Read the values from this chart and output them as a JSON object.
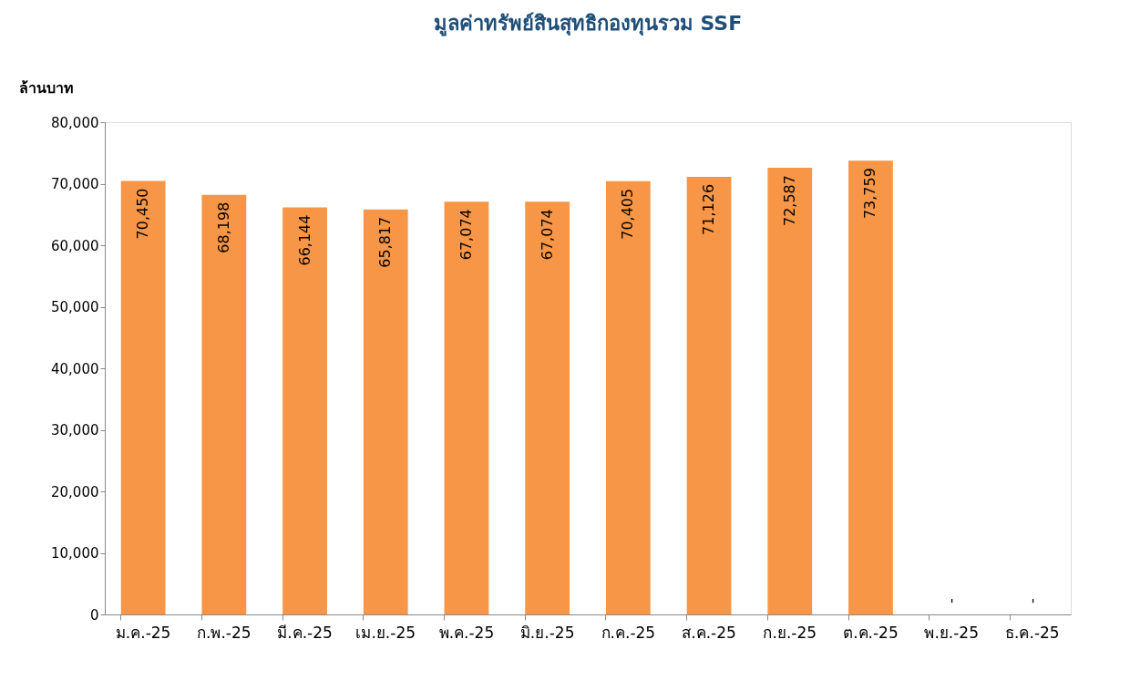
{
  "chart_data": {
    "type": "bar",
    "title": "มูลค่าทรัพย์สินสุทธิกองทุนรวม SSF",
    "ylabel": "ล้านบาท",
    "categories": [
      "ม.ค.-25",
      "ก.พ.-25",
      "มี.ค.-25",
      "เม.ย.-25",
      "พ.ค.-25",
      "มิ.ย.-25",
      "ก.ค.-25",
      "ส.ค.-25",
      "ก.ย.-25",
      "ต.ค.-25",
      "พ.ย.-25",
      "ธ.ค.-25"
    ],
    "values": [
      70450,
      68198,
      66144,
      65817,
      67074,
      67074,
      70405,
      71126,
      72587,
      73759,
      0,
      0
    ],
    "value_labels": [
      "70,450",
      "68,198",
      "66,144",
      "65,817",
      "67,074",
      "67,074",
      "70,405",
      "71,126",
      "72,587",
      "73,759",
      "-",
      "-"
    ],
    "color": "#f79646",
    "ylim": [
      0,
      80000
    ],
    "yticks": [
      0,
      {
        "value": 10000,
        "label": "10,000"
      },
      {
        "value": 20000,
        "label": "20,000"
      },
      {
        "value": 30000,
        "label": "30,000"
      },
      {
        "value": 40000,
        "label": "40,000"
      },
      {
        "value": 50000,
        "label": "50,000"
      },
      {
        "value": 60000,
        "label": "60,000"
      },
      {
        "value": 70000,
        "label": "70,000"
      },
      {
        "value": 80000,
        "label": "80,000"
      }
    ],
    "grid": false
  }
}
